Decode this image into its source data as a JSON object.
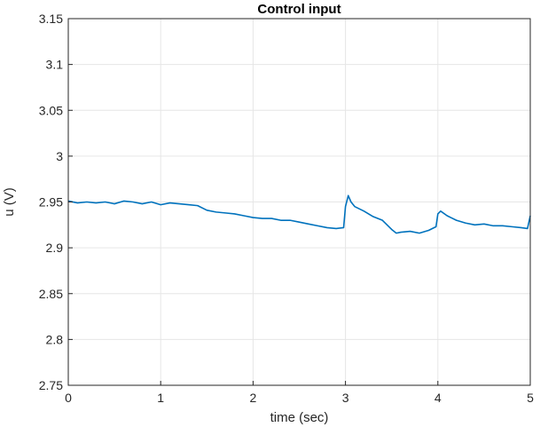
{
  "chart_data": {
    "type": "line",
    "title": "Control input",
    "xlabel": "time (sec)",
    "ylabel": "u (V)",
    "xlim": [
      0,
      5
    ],
    "ylim": [
      2.75,
      3.15
    ],
    "grid": true,
    "x_ticks": [
      "0",
      "1",
      "2",
      "3",
      "4",
      "5"
    ],
    "y_ticks": [
      "2.75",
      "2.8",
      "2.85",
      "2.9",
      "2.95",
      "3",
      "3.05",
      "3.1",
      "3.15"
    ],
    "colors": {
      "series": "#0072BD",
      "grid": "#e6e6e6",
      "axes": "#262626"
    },
    "series": [
      {
        "x": [
          0,
          0.1,
          0.2,
          0.3,
          0.4,
          0.5,
          0.6,
          0.7,
          0.8,
          0.9,
          1.0,
          1.1,
          1.2,
          1.3,
          1.4,
          1.5,
          1.6,
          1.7,
          1.8,
          1.9,
          2.0,
          2.1,
          2.2,
          2.3,
          2.4,
          2.5,
          2.6,
          2.7,
          2.8,
          2.9,
          2.98,
          3.0,
          3.03,
          3.06,
          3.1,
          3.2,
          3.3,
          3.4,
          3.45,
          3.5,
          3.55,
          3.6,
          3.7,
          3.8,
          3.9,
          3.98,
          4.0,
          4.03,
          4.1,
          4.2,
          4.3,
          4.4,
          4.5,
          4.6,
          4.7,
          4.8,
          4.9,
          4.97,
          5.0
        ],
        "y": [
          2.951,
          2.949,
          2.95,
          2.949,
          2.95,
          2.948,
          2.951,
          2.95,
          2.948,
          2.95,
          2.947,
          2.949,
          2.948,
          2.947,
          2.946,
          2.941,
          2.939,
          2.938,
          2.937,
          2.935,
          2.933,
          2.932,
          2.932,
          2.93,
          2.93,
          2.928,
          2.926,
          2.924,
          2.922,
          2.921,
          2.922,
          2.945,
          2.957,
          2.95,
          2.945,
          2.94,
          2.934,
          2.93,
          2.925,
          2.92,
          2.916,
          2.917,
          2.918,
          2.916,
          2.919,
          2.923,
          2.937,
          2.94,
          2.935,
          2.93,
          2.927,
          2.925,
          2.926,
          2.924,
          2.924,
          2.923,
          2.922,
          2.921,
          2.935
        ]
      }
    ]
  }
}
